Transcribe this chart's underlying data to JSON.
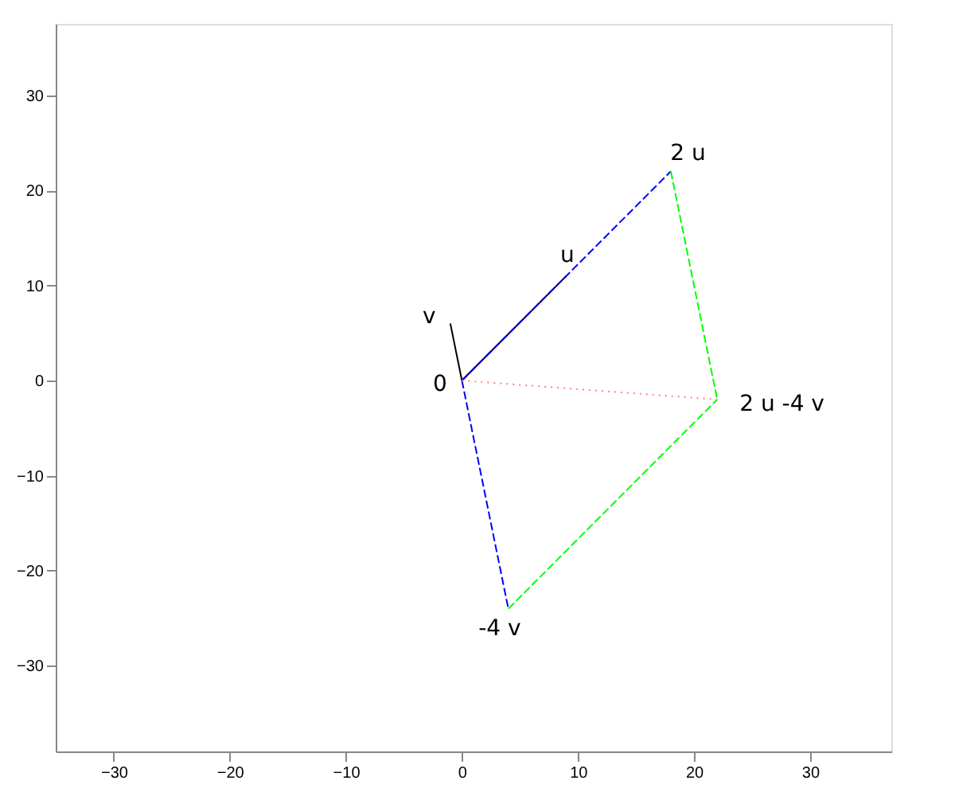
{
  "chart_data": {
    "type": "line",
    "xlim": [
      -35,
      37
    ],
    "ylim": [
      -39,
      37.5
    ],
    "xticks": [
      -30,
      -20,
      -10,
      0,
      10,
      20,
      30
    ],
    "yticks": [
      -30,
      -20,
      -10,
      0,
      10,
      20,
      30
    ],
    "grid": false,
    "marker": "none",
    "series": [
      {
        "x": [
          0,
          9
        ],
        "values": [
          0,
          11
        ],
        "color": "#000000",
        "line_style": "solid"
      },
      {
        "x": [
          0,
          -1
        ],
        "values": [
          0,
          6
        ],
        "color": "#000000",
        "line_style": "solid"
      },
      {
        "x": [
          0,
          18
        ],
        "values": [
          0,
          22
        ],
        "color": "#0000ff",
        "line_style": "dashed"
      },
      {
        "x": [
          0,
          4
        ],
        "values": [
          0,
          -24
        ],
        "color": "#0000ff",
        "line_style": "dashed"
      },
      {
        "x": [
          18,
          22
        ],
        "values": [
          22,
          -2
        ],
        "color": "#00ff00",
        "line_style": "dashed"
      },
      {
        "x": [
          4,
          22
        ],
        "values": [
          -24,
          -2
        ],
        "color": "#00ff00",
        "line_style": "dashed"
      },
      {
        "x": [
          0,
          22
        ],
        "values": [
          0,
          -2
        ],
        "color": "#ff8080",
        "line_style": "dotted"
      }
    ],
    "annotations": [
      {
        "text": "u",
        "x": 9,
        "y": 11
      },
      {
        "text": "v",
        "x": -1,
        "y": 6
      },
      {
        "text": "2 u",
        "x": 18,
        "y": 22
      },
      {
        "text": "-4 v",
        "x": 4,
        "y": -24
      },
      {
        "text": "2 u -4 v",
        "x": 22,
        "y": -2
      },
      {
        "text": "0",
        "x": 0,
        "y": 0
      }
    ]
  }
}
